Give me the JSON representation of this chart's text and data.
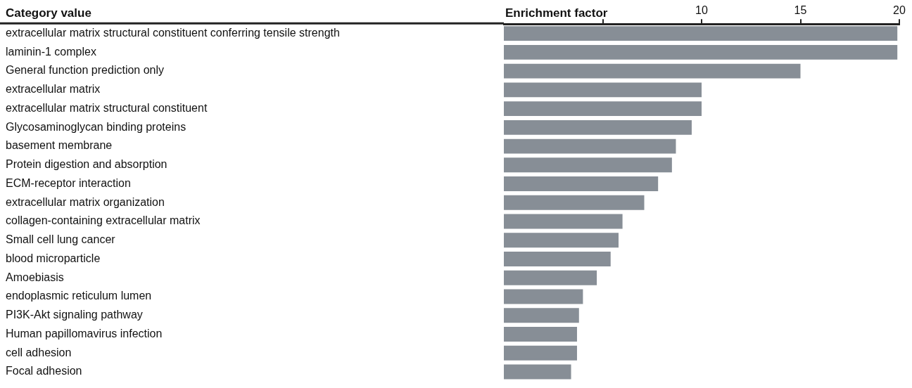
{
  "chart_data": {
    "type": "bar",
    "orientation": "horizontal",
    "ylabel": "Category value",
    "x2label": "Enrichment factor",
    "categories": [
      "extracellular matrix structural constituent conferring tensile strength",
      "laminin-1 complex",
      "General function prediction only",
      "extracellular matrix",
      "extracellular matrix structural constituent",
      "Glycosaminoglycan binding proteins",
      "basement membrane",
      "Protein digestion and absorption",
      "ECM-receptor interaction",
      "extracellular matrix organization",
      "collagen-containing extracellular matrix",
      "Small cell lung cancer",
      "blood microparticle",
      "Amoebiasis",
      "endoplasmic reticulum lumen",
      "PI3K-Akt signaling pathway",
      "Human papillomavirus infection",
      "cell adhesion",
      "Focal adhesion"
    ],
    "series": [
      {
        "axis": "x2",
        "color": "#878e96",
        "values": [
          19.9,
          19.9,
          15,
          10,
          10,
          9.5,
          8.7,
          8.5,
          7.8,
          7.1,
          6.0,
          5.8,
          5.4,
          4.7,
          4.0,
          3.8,
          3.7,
          3.7,
          3.4
        ]
      }
    ],
    "x2lim": [
      0,
      20
    ],
    "x2ticks": [
      {
        "value": 5,
        "label": null
      },
      {
        "value": 10,
        "label": "10"
      },
      {
        "value": 15,
        "label": "15"
      },
      {
        "value": 20,
        "label": "20"
      }
    ],
    "grid": false,
    "legend": false
  }
}
